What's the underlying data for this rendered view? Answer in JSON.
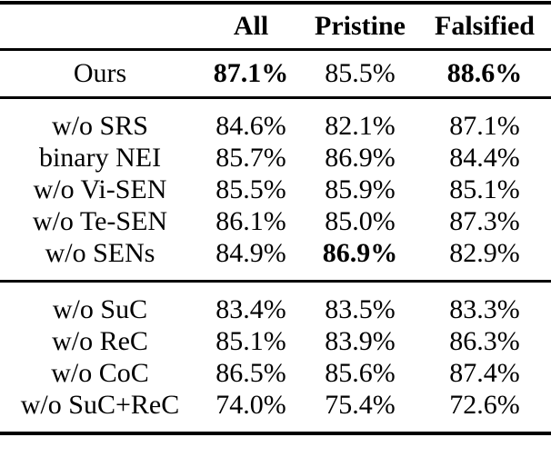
{
  "table": {
    "columns": [
      "",
      "All",
      "Pristine",
      "Falsified"
    ],
    "groups": [
      {
        "rows": [
          {
            "label": "Ours",
            "cells": [
              {
                "value": "87.1%",
                "bold": true
              },
              {
                "value": "85.5%",
                "bold": false
              },
              {
                "value": "88.6%",
                "bold": true
              }
            ]
          }
        ]
      },
      {
        "rows": [
          {
            "label": "w/o SRS",
            "cells": [
              {
                "value": "84.6%",
                "bold": false
              },
              {
                "value": "82.1%",
                "bold": false
              },
              {
                "value": "87.1%",
                "bold": false
              }
            ]
          },
          {
            "label": "binary NEI",
            "cells": [
              {
                "value": "85.7%",
                "bold": false
              },
              {
                "value": "86.9%",
                "bold": false
              },
              {
                "value": "84.4%",
                "bold": false
              }
            ]
          },
          {
            "label": "w/o Vi-SEN",
            "cells": [
              {
                "value": "85.5%",
                "bold": false
              },
              {
                "value": "85.9%",
                "bold": false
              },
              {
                "value": "85.1%",
                "bold": false
              }
            ]
          },
          {
            "label": "w/o Te-SEN",
            "cells": [
              {
                "value": "86.1%",
                "bold": false
              },
              {
                "value": "85.0%",
                "bold": false
              },
              {
                "value": "87.3%",
                "bold": false
              }
            ]
          },
          {
            "label": "w/o SENs",
            "cells": [
              {
                "value": "84.9%",
                "bold": false
              },
              {
                "value": "86.9%",
                "bold": true
              },
              {
                "value": "82.9%",
                "bold": false
              }
            ]
          }
        ]
      },
      {
        "rows": [
          {
            "label": "w/o SuC",
            "cells": [
              {
                "value": "83.4%",
                "bold": false
              },
              {
                "value": "83.5%",
                "bold": false
              },
              {
                "value": "83.3%",
                "bold": false
              }
            ]
          },
          {
            "label": "w/o ReC",
            "cells": [
              {
                "value": "85.1%",
                "bold": false
              },
              {
                "value": "83.9%",
                "bold": false
              },
              {
                "value": "86.3%",
                "bold": false
              }
            ]
          },
          {
            "label": "w/o CoC",
            "cells": [
              {
                "value": "86.5%",
                "bold": false
              },
              {
                "value": "85.6%",
                "bold": false
              },
              {
                "value": "87.4%",
                "bold": false
              }
            ]
          },
          {
            "label": "w/o SuC+ReC",
            "cells": [
              {
                "value": "74.0%",
                "bold": false
              },
              {
                "value": "75.4%",
                "bold": false
              },
              {
                "value": "72.6%",
                "bold": false
              }
            ]
          }
        ]
      }
    ]
  }
}
